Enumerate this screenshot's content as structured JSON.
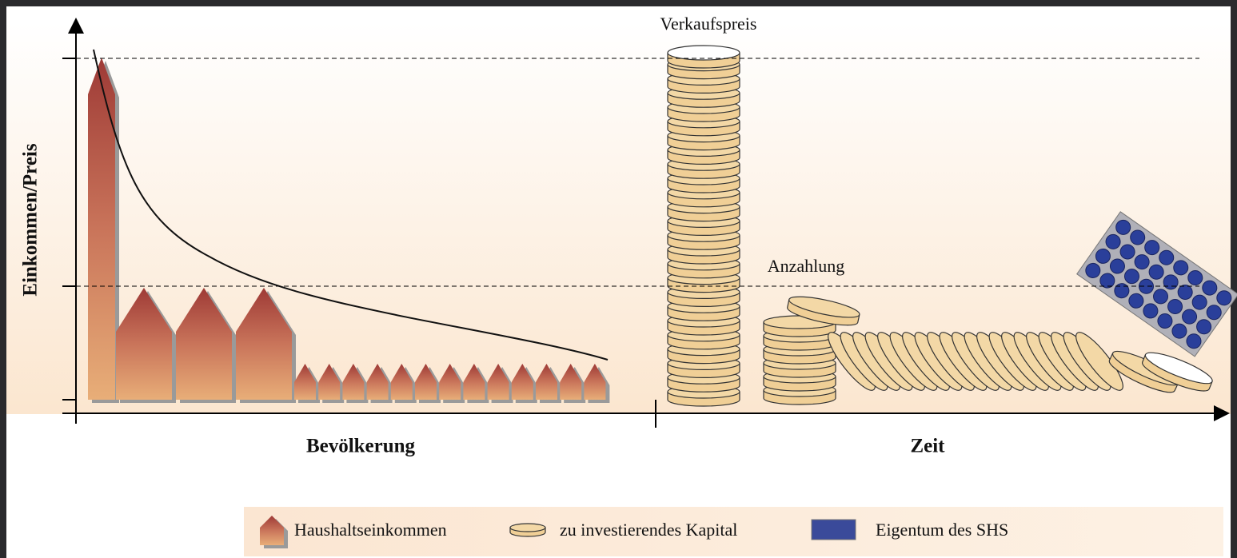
{
  "axes": {
    "y_label": "Einkommen/Preis",
    "x_label_left": "Bevölkerung",
    "x_label_right": "Zeit"
  },
  "annotations": {
    "sale_price": "Verkaufspreis",
    "down_payment": "Anzahlung"
  },
  "legend": {
    "items": [
      "Haushaltseinkommen",
      "zu investierendes Kapital",
      "Eigentum des SHS"
    ]
  }
}
